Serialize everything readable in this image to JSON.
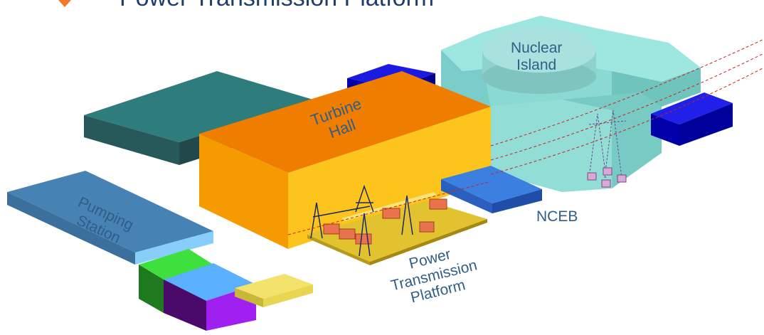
{
  "header": {
    "title": "Power Transmission Platform",
    "bullet_icon": "orange-chevron-bullet-icon",
    "bullet_color": "#f07a2a",
    "title_color": "#1f3f6a"
  },
  "labels": {
    "nuclear_island": "Nuclear\nIsland",
    "turbine_hall": "Turbine\nHall",
    "pumping_station": "Pumping\nStation",
    "nceb": "NCEB",
    "power_platform": "Power\nTransmission\nPlatform"
  },
  "colors": {
    "turbine_hall": "#f8c21a",
    "turbine_roof": "#ef7d00",
    "nuclear_island": "#82d8d2",
    "dark_teal": "#2e6a6a",
    "pumping_station": "#4682b4",
    "blue_blocks": "#0000cc",
    "nceb_block": "#3b7fe0",
    "platform": "#e0c23a",
    "transformer": "#e8734d",
    "pump_green": "#33dd33",
    "pump_purple": "#aa22ee",
    "power_lines": "#cc2222"
  }
}
